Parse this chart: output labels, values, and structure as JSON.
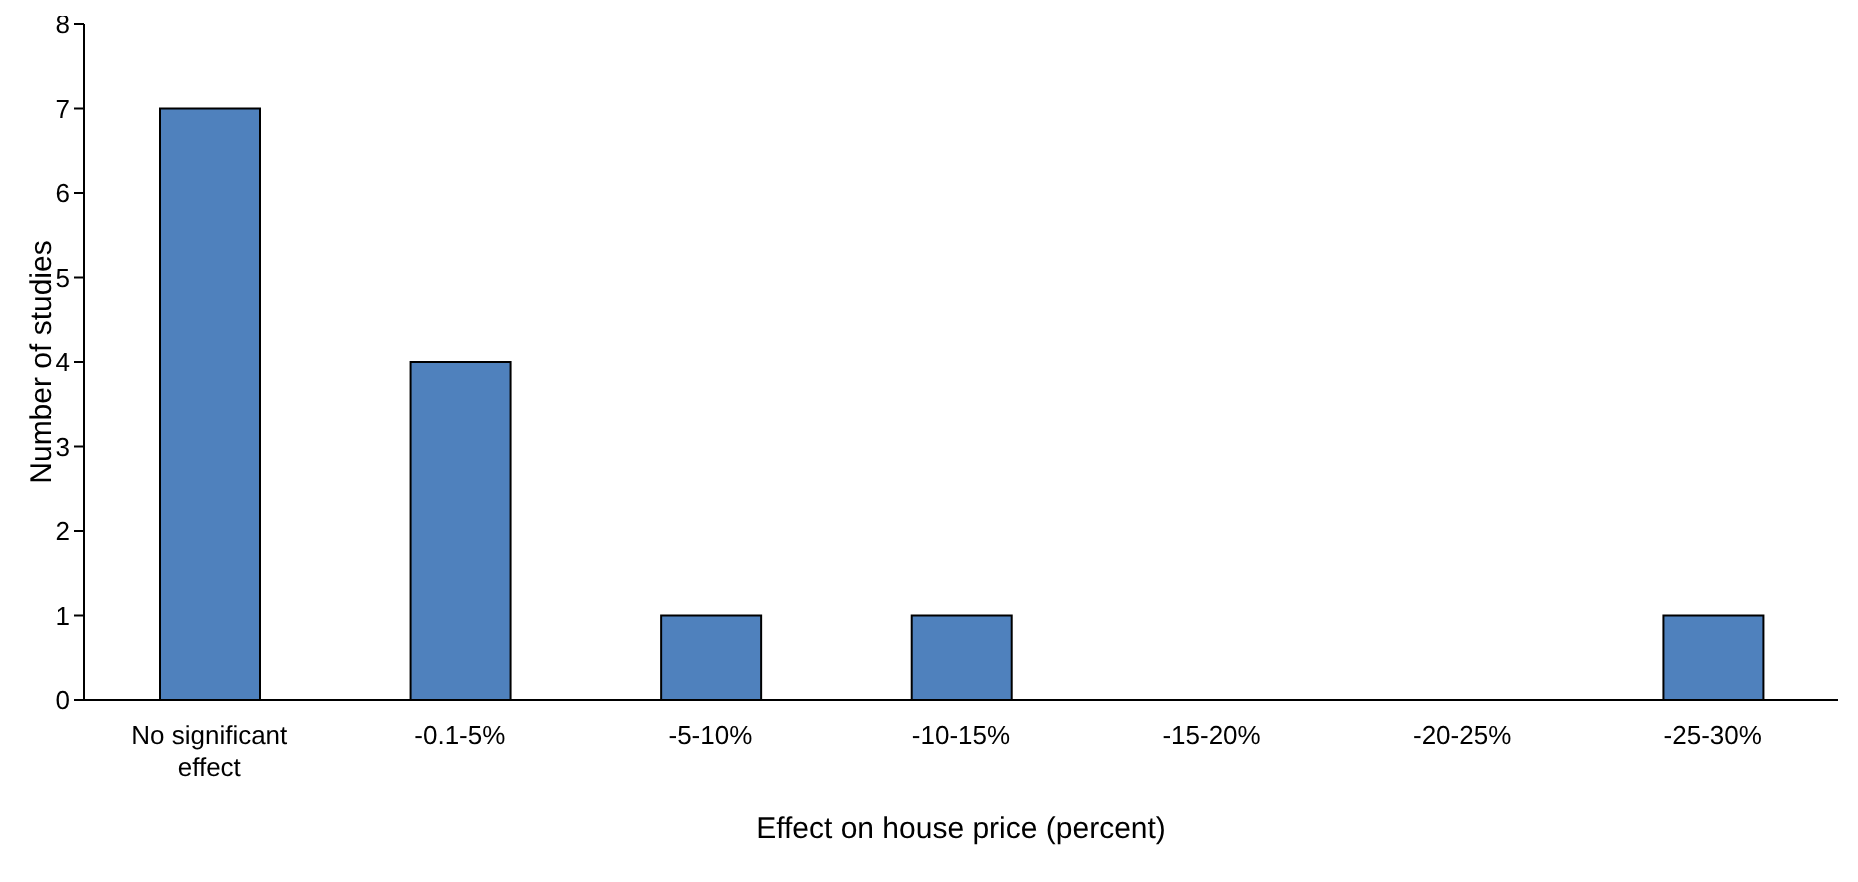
{
  "chart_data": {
    "type": "bar",
    "xlabel": "Effect on house price (percent)",
    "ylabel": "Number of studies",
    "categories": [
      "No significant effect",
      "-0.1-5%",
      "-5-10%",
      "-10-15%",
      "-15-20%",
      "-20-25%",
      "-25-30%"
    ],
    "values": [
      7,
      4,
      1,
      1,
      0,
      0,
      1
    ],
    "color": "#4f81bd",
    "ylim": [
      0,
      8
    ],
    "yticks": [
      0,
      1,
      2,
      3,
      4,
      5,
      6,
      7,
      8
    ],
    "grid": false,
    "legend": false
  }
}
